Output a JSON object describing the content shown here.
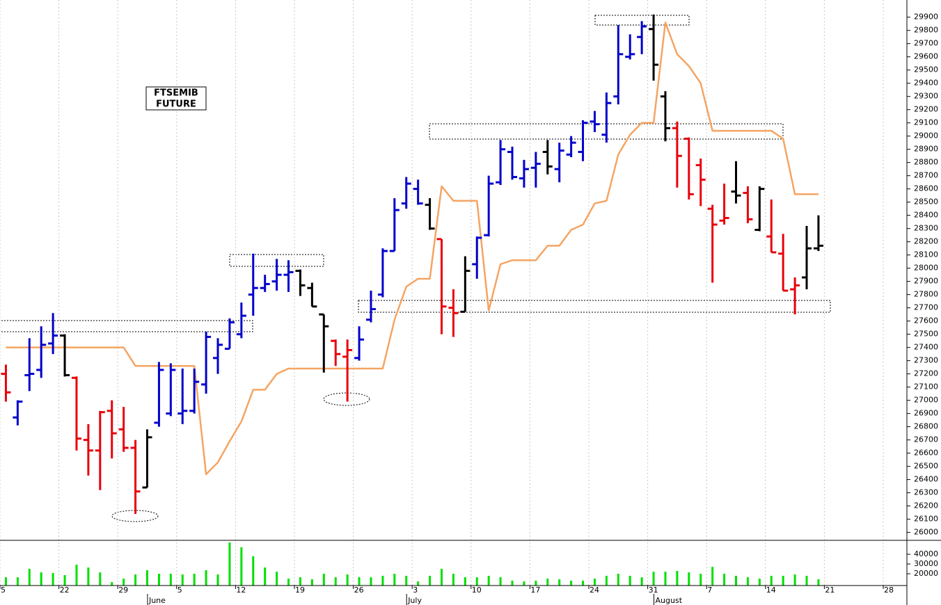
{
  "chart_data": {
    "type": "ohlc",
    "annotation": [
      "FTSEMIB",
      "FUTURE"
    ],
    "categories": [
      "5",
      null,
      null,
      null,
      null,
      "22",
      null,
      null,
      null,
      null,
      "29",
      null,
      null,
      null,
      null,
      "5",
      null,
      null,
      null,
      null,
      "12",
      null,
      null,
      null,
      null,
      "19",
      null,
      null,
      null,
      null,
      "26",
      null,
      null,
      null,
      null,
      "3",
      null,
      null,
      null,
      null,
      "10",
      null,
      null,
      null,
      null,
      "17",
      null,
      null,
      null,
      null,
      "24",
      null,
      null,
      null,
      null,
      "31",
      null,
      null,
      null,
      null,
      "7",
      null,
      null,
      null,
      null,
      "14",
      null,
      null,
      null,
      null,
      "21",
      null,
      null,
      null,
      null,
      "28"
    ],
    "month_labels": [
      null,
      null,
      null,
      null,
      null,
      null,
      null,
      null,
      null,
      null,
      null,
      null,
      null,
      "June",
      null,
      null,
      null,
      null,
      null,
      null,
      null,
      null,
      null,
      null,
      null,
      null,
      null,
      null,
      null,
      null,
      null,
      null,
      null,
      null,
      null,
      "July",
      null,
      null,
      null,
      null,
      null,
      null,
      null,
      null,
      null,
      null,
      null,
      null,
      null,
      null,
      null,
      null,
      null,
      null,
      null,
      null,
      "August",
      null,
      null,
      null,
      null,
      null,
      null,
      null,
      null,
      null,
      null,
      null,
      null,
      null,
      null,
      null,
      null,
      null,
      null,
      null
    ],
    "ohlc": {
      "open": [
        27200,
        26870,
        27190,
        27230,
        27430,
        27490,
        27170,
        26700,
        26620,
        26920,
        26780,
        26640,
        26340,
        26830,
        26900,
        26900,
        26920,
        27120,
        27320,
        27390,
        27500,
        27800,
        27850,
        27900,
        27950,
        27980,
        27850,
        27650,
        27450,
        27330,
        27320,
        27610,
        27800,
        28130,
        28490,
        28600,
        28480,
        28220,
        27700,
        27670,
        28030,
        28250,
        28650,
        28880,
        28680,
        28760,
        28880,
        28750,
        28860,
        28880,
        29110,
        29010,
        29300,
        29600,
        29750,
        29810,
        29300,
        29060,
        28980,
        28780,
        28450,
        28360,
        28580,
        28570,
        28290,
        28240,
        28110,
        27840,
        27930,
        28150,
        null,
        null,
        null,
        null,
        null,
        null
      ],
      "high": [
        27270,
        27000,
        27470,
        27560,
        27660,
        27500,
        27180,
        26820,
        26920,
        27000,
        26950,
        26700,
        26780,
        27290,
        27280,
        27240,
        27240,
        27520,
        27470,
        27620,
        27740,
        28110,
        27950,
        28070,
        28060,
        27990,
        27890,
        27650,
        27460,
        27460,
        27560,
        27830,
        28150,
        28530,
        28690,
        28670,
        28530,
        28220,
        27840,
        28090,
        28240,
        28700,
        28970,
        28920,
        28820,
        28880,
        28970,
        28950,
        29000,
        29120,
        29190,
        29330,
        29840,
        29770,
        29870,
        29920,
        29340,
        29110,
        28990,
        28830,
        28480,
        28640,
        28810,
        28620,
        28620,
        28520,
        28260,
        27930,
        28320,
        28400,
        null,
        null,
        null,
        null,
        null,
        null
      ],
      "low": [
        26990,
        26810,
        27070,
        27170,
        27350,
        27180,
        26620,
        26430,
        26320,
        26560,
        26610,
        26140,
        26340,
        26800,
        26880,
        26820,
        26900,
        27050,
        27200,
        27390,
        27470,
        27640,
        27820,
        27830,
        27820,
        27790,
        27710,
        27210,
        27260,
        26990,
        27300,
        27590,
        27780,
        28130,
        28450,
        28480,
        28290,
        27500,
        27480,
        27670,
        27920,
        28240,
        28630,
        28670,
        28610,
        28610,
        28710,
        28650,
        28840,
        28810,
        29030,
        28950,
        29240,
        29580,
        29620,
        29420,
        28960,
        28610,
        28520,
        28470,
        27890,
        28330,
        28490,
        28340,
        28280,
        28120,
        27830,
        27650,
        27840,
        28130,
        null,
        null,
        null,
        null,
        null,
        null
      ],
      "close": [
        27060,
        26990,
        27200,
        27420,
        27490,
        27190,
        26710,
        26620,
        26910,
        26750,
        26640,
        26310,
        26720,
        27230,
        27230,
        26920,
        27140,
        27480,
        27420,
        27590,
        27640,
        27850,
        27880,
        27950,
        27970,
        27870,
        27710,
        27560,
        27350,
        27380,
        27460,
        27690,
        28130,
        28440,
        28640,
        28490,
        28300,
        27710,
        27660,
        27980,
        28230,
        28640,
        28900,
        28690,
        28750,
        28790,
        28770,
        28890,
        28950,
        29100,
        29090,
        29250,
        29620,
        29620,
        29830,
        29540,
        29060,
        28850,
        28560,
        28670,
        28330,
        28380,
        28550,
        28370,
        28600,
        28120,
        27830,
        27870,
        28150,
        28170,
        null,
        null,
        null,
        null,
        null,
        null
      ]
    },
    "bar_colors": [
      "#e8000b",
      "#0000cc",
      "#0000cc",
      "#0000cc",
      "#0000cc",
      "#000000",
      "#e8000b",
      "#e8000b",
      "#e8000b",
      "#e8000b",
      "#e8000b",
      "#e8000b",
      "#000000",
      "#0000cc",
      "#0000cc",
      "#0000cc",
      "#0000cc",
      "#0000cc",
      "#0000cc",
      "#0000cc",
      "#0000cc",
      "#0000cc",
      "#0000cc",
      "#0000cc",
      "#0000cc",
      "#000000",
      "#000000",
      "#000000",
      "#e8000b",
      "#e8000b",
      "#0000cc",
      "#0000cc",
      "#0000cc",
      "#0000cc",
      "#0000cc",
      "#0000cc",
      "#000000",
      "#e8000b",
      "#e8000b",
      "#000000",
      "#0000cc",
      "#0000cc",
      "#0000cc",
      "#0000cc",
      "#0000cc",
      "#0000cc",
      "#000000",
      "#0000cc",
      "#0000cc",
      "#0000cc",
      "#0000cc",
      "#0000cc",
      "#0000cc",
      "#0000cc",
      "#0000cc",
      "#000000",
      "#000000",
      "#e8000b",
      "#e8000b",
      "#e8000b",
      "#e8000b",
      "#e8000b",
      "#000000",
      "#e8000b",
      "#000000",
      "#e8000b",
      "#e8000b",
      "#e8000b",
      "#000000",
      "#000000",
      null,
      null,
      null,
      null,
      null,
      null
    ],
    "line": {
      "color": "#f5a462",
      "values": [
        27400,
        27400,
        27400,
        27400,
        27400,
        27400,
        27400,
        27400,
        27400,
        27400,
        27400,
        27260,
        27260,
        27260,
        27260,
        27260,
        27260,
        26440,
        26530,
        26690,
        26840,
        27080,
        27080,
        27200,
        27240,
        27240,
        27240,
        27240,
        27240,
        27240,
        27240,
        27240,
        27240,
        27610,
        27860,
        27920,
        27920,
        28620,
        28510,
        28510,
        28510,
        27680,
        28030,
        28060,
        28060,
        28060,
        28170,
        28170,
        28290,
        28330,
        28490,
        28510,
        28860,
        29010,
        29100,
        29100,
        29860,
        29620,
        29530,
        29400,
        29040,
        29040,
        29040,
        29040,
        29040,
        29040,
        28980,
        28560,
        28560,
        28560,
        null,
        null,
        null,
        null,
        null,
        null
      ]
    },
    "ylim": [
      25940,
      30030
    ],
    "yticks": [
      26000,
      26100,
      26200,
      26300,
      26400,
      26500,
      26600,
      26700,
      26800,
      26900,
      27000,
      27100,
      27200,
      27300,
      27400,
      27500,
      27600,
      27700,
      27800,
      27900,
      28000,
      28100,
      28200,
      28300,
      28400,
      28500,
      28600,
      28700,
      28800,
      28900,
      29000,
      29100,
      29200,
      29300,
      29400,
      29500,
      29600,
      29700,
      29800,
      29900
    ],
    "grid_x": true,
    "volume": {
      "color": "#00e000",
      "values": [
        16400,
        16400,
        25000,
        21400,
        20700,
        18600,
        29300,
        26400,
        21400,
        11400,
        15000,
        19300,
        23600,
        20000,
        20000,
        19300,
        20000,
        23600,
        19300,
        52100,
        47100,
        37900,
        26400,
        22100,
        15000,
        16400,
        14300,
        20000,
        16400,
        19300,
        16400,
        16400,
        17900,
        20000,
        17900,
        12100,
        17900,
        25000,
        20000,
        16400,
        16400,
        17900,
        16400,
        12900,
        12100,
        12900,
        15000,
        14300,
        12900,
        12900,
        15000,
        17900,
        20000,
        17900,
        16400,
        22100,
        22100,
        22900,
        21400,
        20000,
        27100,
        20000,
        17900,
        16400,
        15000,
        17900,
        17900,
        19300,
        17900,
        14300,
        null,
        null,
        null,
        null,
        null,
        null
      ],
      "ylim": [
        7900,
        54300
      ],
      "yticks": [
        20000,
        30000,
        40000
      ]
    }
  }
}
